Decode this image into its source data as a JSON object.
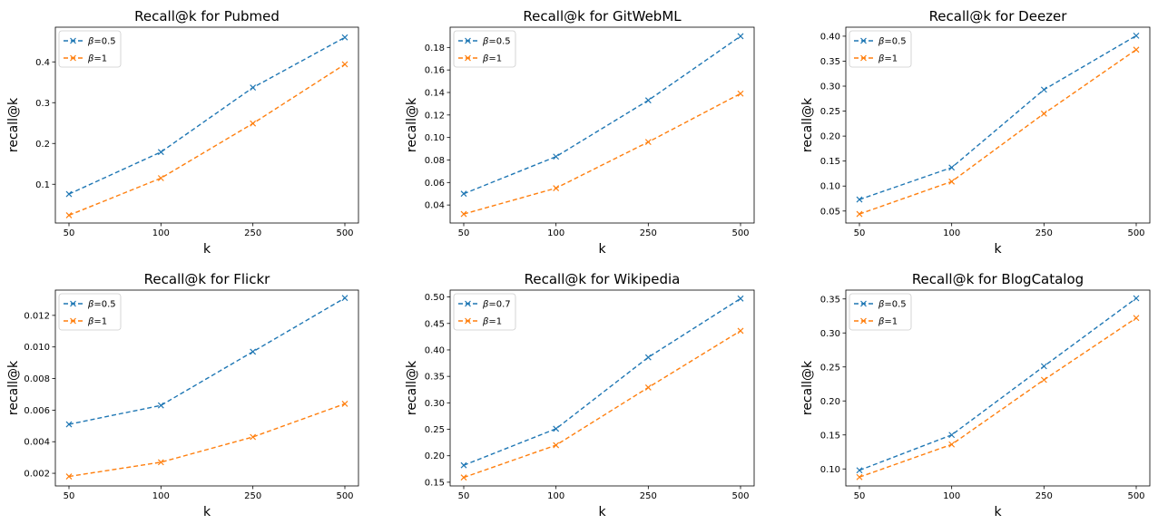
{
  "chart_data": [
    {
      "type": "line",
      "title": "Recall@k for Pubmed",
      "xlabel": "k",
      "ylabel": "recall@k",
      "categories": [
        "50",
        "100",
        "250",
        "500"
      ],
      "ylim": [
        0.005,
        0.485
      ],
      "yticks": [
        0.1,
        0.2,
        0.3,
        0.4
      ],
      "ytick_labels": [
        "0.1",
        "0.2",
        "0.3",
        "0.4"
      ],
      "legend_position": "top-left",
      "series": [
        {
          "name": "β=0.5",
          "legend_prefix": "β",
          "legend_value": "=0.5",
          "color": "#1f77b4",
          "values": [
            0.076,
            0.179,
            0.337,
            0.46
          ]
        },
        {
          "name": "β=1",
          "legend_prefix": "β",
          "legend_value": "=1",
          "color": "#ff7f0e",
          "values": [
            0.024,
            0.115,
            0.249,
            0.394
          ]
        }
      ]
    },
    {
      "type": "line",
      "title": "Recall@k for GitWebML",
      "xlabel": "k",
      "ylabel": "recall@k",
      "categories": [
        "50",
        "100",
        "250",
        "500"
      ],
      "ylim": [
        0.024,
        0.198
      ],
      "yticks": [
        0.04,
        0.06,
        0.08,
        0.1,
        0.12,
        0.14,
        0.16,
        0.18
      ],
      "ytick_labels": [
        "0.04",
        "0.06",
        "0.08",
        "0.10",
        "0.12",
        "0.14",
        "0.16",
        "0.18"
      ],
      "legend_position": "top-left",
      "series": [
        {
          "name": "β=0.5",
          "legend_prefix": "β",
          "legend_value": "=0.5",
          "color": "#1f77b4",
          "values": [
            0.05,
            0.083,
            0.133,
            0.19
          ]
        },
        {
          "name": "β=1",
          "legend_prefix": "β",
          "legend_value": "=1",
          "color": "#ff7f0e",
          "values": [
            0.032,
            0.055,
            0.096,
            0.139
          ]
        }
      ]
    },
    {
      "type": "line",
      "title": "Recall@k for Deezer",
      "xlabel": "k",
      "ylabel": "recall@k",
      "categories": [
        "50",
        "100",
        "250",
        "500"
      ],
      "ylim": [
        0.026,
        0.418
      ],
      "yticks": [
        0.05,
        0.1,
        0.15,
        0.2,
        0.25,
        0.3,
        0.35,
        0.4
      ],
      "ytick_labels": [
        "0.05",
        "0.10",
        "0.15",
        "0.20",
        "0.25",
        "0.30",
        "0.35",
        "0.40"
      ],
      "legend_position": "top-left",
      "series": [
        {
          "name": "β=0.5",
          "legend_prefix": "β",
          "legend_value": "=0.5",
          "color": "#1f77b4",
          "values": [
            0.073,
            0.137,
            0.293,
            0.401
          ]
        },
        {
          "name": "β=1",
          "legend_prefix": "β",
          "legend_value": "=1",
          "color": "#ff7f0e",
          "values": [
            0.044,
            0.109,
            0.245,
            0.373
          ]
        }
      ]
    },
    {
      "type": "line",
      "title": "Recall@k for Flickr",
      "xlabel": "k",
      "ylabel": "recall@k",
      "categories": [
        "50",
        "100",
        "250",
        "500"
      ],
      "ylim": [
        0.0012,
        0.0136
      ],
      "yticks": [
        0.002,
        0.004,
        0.006,
        0.008,
        0.01,
        0.012
      ],
      "ytick_labels": [
        "0.002",
        "0.004",
        "0.006",
        "0.008",
        "0.010",
        "0.012"
      ],
      "legend_position": "top-left",
      "series": [
        {
          "name": "β=0.5",
          "legend_prefix": "β",
          "legend_value": "=0.5",
          "color": "#1f77b4",
          "values": [
            0.0051,
            0.0063,
            0.0097,
            0.0131
          ]
        },
        {
          "name": "β=1",
          "legend_prefix": "β",
          "legend_value": "=1",
          "color": "#ff7f0e",
          "values": [
            0.0018,
            0.0027,
            0.0043,
            0.0064
          ]
        }
      ]
    },
    {
      "type": "line",
      "title": "Recall@k for Wikipedia",
      "xlabel": "k",
      "ylabel": "recall@k",
      "categories": [
        "50",
        "100",
        "250",
        "500"
      ],
      "ylim": [
        0.143,
        0.513
      ],
      "yticks": [
        0.15,
        0.2,
        0.25,
        0.3,
        0.35,
        0.4,
        0.45,
        0.5
      ],
      "ytick_labels": [
        "0.15",
        "0.20",
        "0.25",
        "0.30",
        "0.35",
        "0.40",
        "0.45",
        "0.50"
      ],
      "legend_position": "top-left",
      "series": [
        {
          "name": "β=0.7",
          "legend_prefix": "β",
          "legend_value": "=0.7",
          "color": "#1f77b4",
          "values": [
            0.182,
            0.251,
            0.386,
            0.497
          ]
        },
        {
          "name": "β=1",
          "legend_prefix": "β",
          "legend_value": "=1",
          "color": "#ff7f0e",
          "values": [
            0.159,
            0.22,
            0.329,
            0.436
          ]
        }
      ]
    },
    {
      "type": "line",
      "title": "Recall@k for BlogCatalog",
      "xlabel": "k",
      "ylabel": "recall@k",
      "categories": [
        "50",
        "100",
        "250",
        "500"
      ],
      "ylim": [
        0.075,
        0.363
      ],
      "yticks": [
        0.1,
        0.15,
        0.2,
        0.25,
        0.3,
        0.35
      ],
      "ytick_labels": [
        "0.10",
        "0.15",
        "0.20",
        "0.25",
        "0.30",
        "0.35"
      ],
      "legend_position": "top-left",
      "series": [
        {
          "name": "β=0.5",
          "legend_prefix": "β",
          "legend_value": "=0.5",
          "color": "#1f77b4",
          "values": [
            0.098,
            0.15,
            0.251,
            0.351
          ]
        },
        {
          "name": "β=1",
          "legend_prefix": "β",
          "legend_value": "=1",
          "color": "#ff7f0e",
          "values": [
            0.088,
            0.136,
            0.231,
            0.322
          ]
        }
      ]
    }
  ]
}
